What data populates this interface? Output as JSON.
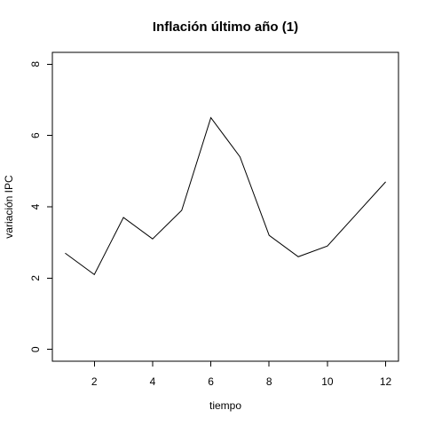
{
  "chart_data": {
    "type": "line",
    "title": "Inflación último año (1)",
    "xlabel": "tiempo",
    "ylabel": "variación IPC",
    "x": [
      1,
      2,
      3,
      4,
      5,
      6,
      7,
      8,
      9,
      10,
      11,
      12
    ],
    "series": [
      {
        "values": [
          2.7,
          2.1,
          3.7,
          3.1,
          3.9,
          6.5,
          5.4,
          3.2,
          2.6,
          2.9,
          3.8,
          4.7
        ]
      }
    ],
    "xlim": [
      0.56,
      12.44
    ],
    "ylim": [
      -0.33,
      8.33
    ],
    "xticks": [
      2,
      4,
      6,
      8,
      10,
      12
    ],
    "yticks": [
      0,
      2,
      4,
      6,
      8
    ],
    "grid": false,
    "line_color": "#000000"
  }
}
